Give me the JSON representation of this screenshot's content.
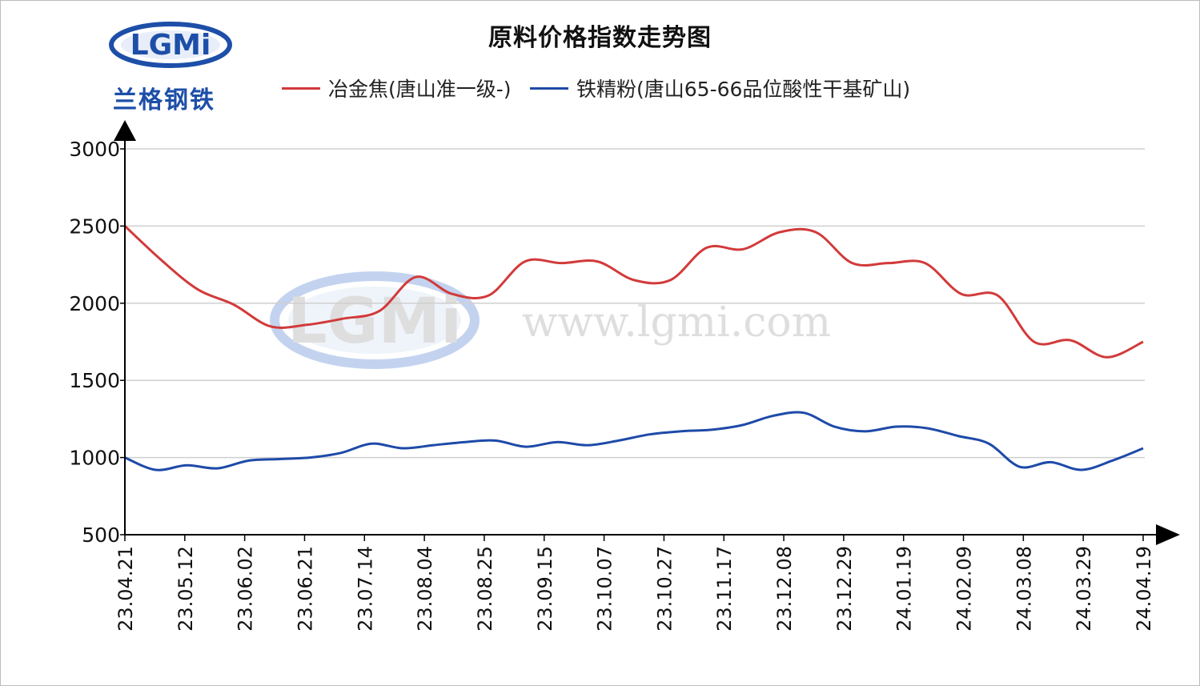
{
  "logo": {
    "mark": "LGMi",
    "cn_name": "兰格钢铁"
  },
  "watermark": {
    "mark": "LGMi",
    "url": "www.lgmi.com"
  },
  "colors": {
    "coke": "#d23a3a",
    "iron": "#1e4aa8",
    "grid": "#cfcfcf",
    "axis": "#000000"
  },
  "chart_data": {
    "type": "line",
    "title": "原料价格指数走势图",
    "xlabel": "",
    "ylabel": "",
    "ylim": [
      500,
      3000
    ],
    "yticks": [
      500,
      1000,
      1500,
      2000,
      2500,
      3000
    ],
    "xticks": [
      "23.04.21",
      "23.05.12",
      "23.06.02",
      "23.06.21",
      "23.07.14",
      "23.08.04",
      "23.08.25",
      "23.09.15",
      "23.10.07",
      "23.10.27",
      "23.11.17",
      "23.12.08",
      "23.12.29",
      "24.01.19",
      "24.02.09",
      "24.03.08",
      "24.03.29",
      "24.04.19"
    ],
    "grid": true,
    "legend_position": "top",
    "series": [
      {
        "name": "冶金焦(唐山准一级-)",
        "color": "#d23a3a",
        "values": [
          2500,
          2280,
          2090,
          1990,
          1850,
          1860,
          1900,
          1950,
          2170,
          2060,
          2050,
          2270,
          2260,
          2270,
          2150,
          2150,
          2360,
          2350,
          2460,
          2460,
          2260,
          2260,
          2260,
          2060,
          2050,
          1750,
          1760,
          1650,
          1750
        ]
      },
      {
        "name": "铁精粉(唐山65-66品位酸性干基矿山)",
        "color": "#1e4aa8",
        "values": [
          1000,
          920,
          950,
          930,
          980,
          990,
          1000,
          1030,
          1090,
          1060,
          1080,
          1100,
          1110,
          1070,
          1100,
          1080,
          1110,
          1150,
          1170,
          1180,
          1210,
          1270,
          1290,
          1200,
          1170,
          1200,
          1190,
          1140,
          1090,
          940,
          970,
          920,
          980,
          1060
        ]
      }
    ]
  }
}
